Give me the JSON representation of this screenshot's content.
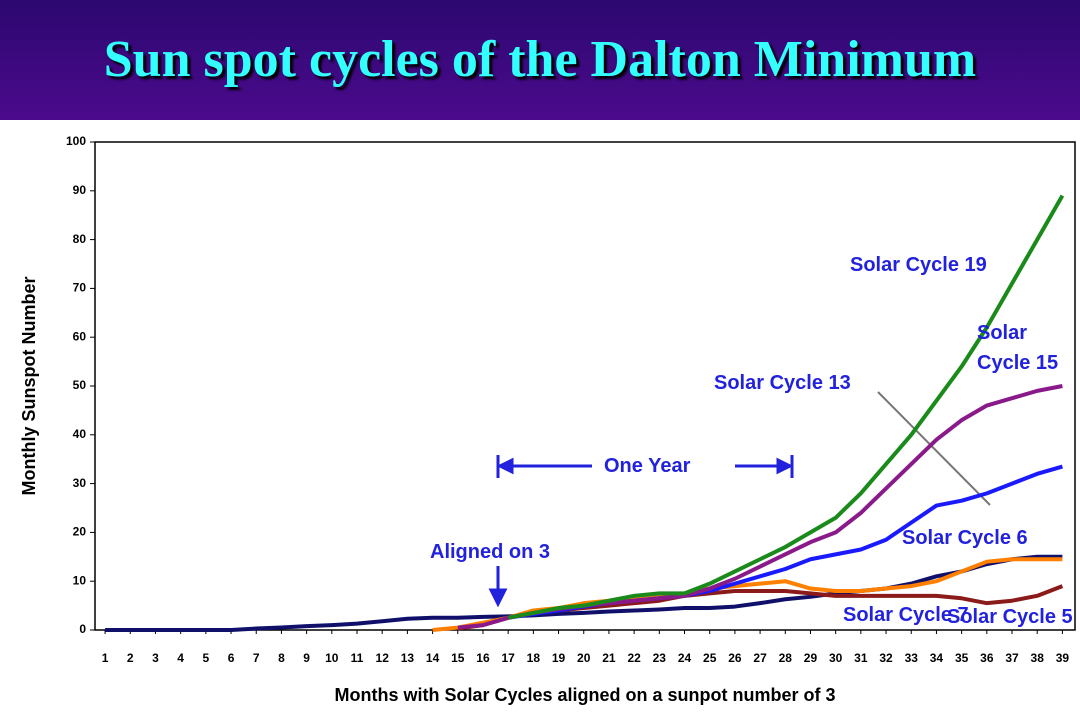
{
  "title": "Sun spot cycles of the Dalton Minimum",
  "chart_data": {
    "type": "line",
    "xlabel": "Months with Solar Cycles aligned on a sunpot number of 3",
    "ylabel": "Monthly Sunspot Number",
    "x": [
      1,
      2,
      3,
      4,
      5,
      6,
      7,
      8,
      9,
      10,
      11,
      12,
      13,
      14,
      15,
      16,
      17,
      18,
      19,
      20,
      21,
      22,
      23,
      24,
      25,
      26,
      27,
      28,
      29,
      30,
      31,
      32,
      33,
      34,
      35,
      36,
      37,
      38,
      39
    ],
    "xlim": [
      0.6,
      39.5
    ],
    "xticks": [
      1,
      2,
      3,
      4,
      5,
      6,
      7,
      8,
      9,
      10,
      11,
      12,
      13,
      14,
      15,
      16,
      17,
      18,
      19,
      20,
      21,
      22,
      23,
      24,
      25,
      26,
      27,
      28,
      29,
      30,
      31,
      32,
      33,
      34,
      35,
      36,
      37,
      38,
      39
    ],
    "ylim": [
      0,
      100
    ],
    "yticks": [
      0,
      10,
      20,
      30,
      40,
      50,
      60,
      70,
      80,
      90,
      100
    ],
    "grid": false,
    "series": [
      {
        "name": "Solar Cycle 6",
        "color": "#10106a",
        "values": [
          0,
          0,
          0,
          0,
          0,
          0,
          0.3,
          0.5,
          0.8,
          1,
          1.3,
          1.8,
          2.3,
          2.5,
          2.5,
          2.7,
          2.8,
          3,
          3.3,
          3.5,
          3.8,
          4,
          4.2,
          4.5,
          4.5,
          4.8,
          5.5,
          6.3,
          6.8,
          7.5,
          8,
          8.5,
          9.5,
          11,
          12,
          13.5,
          14.5,
          15,
          15
        ]
      },
      {
        "name": "Solar Cycle 5",
        "color": "#8b1a1a",
        "values": [
          null,
          null,
          null,
          null,
          null,
          null,
          null,
          null,
          null,
          null,
          null,
          null,
          null,
          null,
          0.3,
          1,
          2.5,
          3.5,
          4,
          4.5,
          5,
          5.5,
          6,
          7,
          7.5,
          8,
          8,
          8,
          7.5,
          7,
          7,
          7,
          7,
          7,
          6.5,
          5.5,
          6,
          7,
          9
        ]
      },
      {
        "name": "Solar Cycle 7",
        "color": "#ff8000",
        "values": [
          null,
          null,
          null,
          null,
          null,
          null,
          null,
          null,
          null,
          null,
          null,
          null,
          null,
          0,
          0.5,
          1.5,
          2.5,
          4,
          4.5,
          5.5,
          6,
          6.5,
          7,
          7.5,
          8.5,
          9,
          9.5,
          10,
          8.5,
          8,
          8,
          8.5,
          9,
          10,
          12,
          14,
          14.5,
          14.5,
          14.5
        ]
      },
      {
        "name": "Solar Cycle 13",
        "color": "#1a1aff",
        "values": [
          null,
          null,
          null,
          null,
          null,
          null,
          null,
          null,
          null,
          null,
          null,
          null,
          null,
          null,
          null,
          null,
          2.5,
          3.3,
          4,
          4.8,
          5.5,
          6,
          6.5,
          7,
          8,
          9.5,
          11,
          12.5,
          14.5,
          15.5,
          16.5,
          18.5,
          22,
          25.5,
          26.5,
          28,
          30,
          32,
          33.5
        ]
      },
      {
        "name": "Solar Cycle 15",
        "color": "#8a1a8a",
        "values": [
          null,
          null,
          null,
          null,
          null,
          null,
          null,
          null,
          null,
          null,
          null,
          null,
          null,
          null,
          0.5,
          1,
          2.5,
          3.5,
          4.3,
          5,
          5.5,
          6,
          6.5,
          7,
          8.5,
          10.5,
          13,
          15.5,
          18,
          20,
          24,
          29,
          34,
          39,
          43,
          46,
          47.5,
          49,
          50
        ]
      },
      {
        "name": "Solar Cycle 19",
        "color": "#1a8a1a",
        "values": [
          null,
          null,
          null,
          null,
          null,
          null,
          null,
          null,
          null,
          null,
          null,
          null,
          null,
          null,
          null,
          null,
          2.5,
          3.5,
          4.5,
          5,
          6,
          7,
          7.5,
          7.5,
          9.5,
          12,
          14.5,
          17,
          20,
          23,
          28,
          34,
          40,
          47,
          54,
          62,
          71,
          80,
          89
        ]
      }
    ],
    "annotations": [
      "Aligned on 3",
      "One Year"
    ]
  }
}
